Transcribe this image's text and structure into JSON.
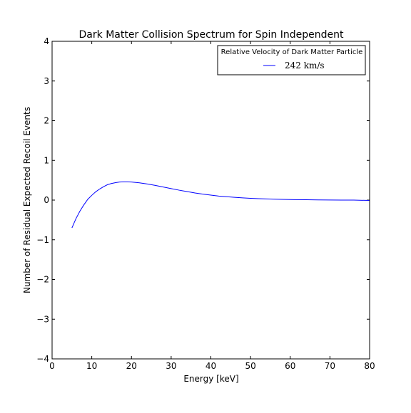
{
  "chart_data": {
    "type": "line",
    "title": "Dark Matter Collision Spectrum for Spin Independent",
    "xlabel": "Energy [keV]",
    "ylabel": "Number of Residual Expected Recoil Events",
    "xlim": [
      0,
      80
    ],
    "ylim": [
      -4,
      4
    ],
    "xticks": [
      0,
      10,
      20,
      30,
      40,
      50,
      60,
      70,
      80
    ],
    "yticks": [
      4,
      3,
      2,
      1,
      0,
      -1,
      -2,
      -3,
      -4
    ],
    "xtick_labels": [
      "0",
      "10",
      "20",
      "30",
      "40",
      "50",
      "60",
      "70",
      "80"
    ],
    "ytick_labels": [
      "4",
      "3",
      "2",
      "1",
      "0",
      "−1",
      "−2",
      "−3",
      "−4"
    ],
    "grid": false,
    "legend": {
      "title": "Relative Velocity of Dark Matter Particle",
      "placement": "top-right"
    },
    "series": [
      {
        "name": "242  km/s",
        "color": "#0000ff",
        "x": [
          5,
          6,
          7,
          8,
          9,
          10,
          11,
          12,
          13,
          14,
          15,
          16,
          17,
          18,
          19,
          20,
          22,
          24,
          26,
          28,
          30,
          32,
          34,
          36,
          38,
          40,
          42,
          44,
          46,
          48,
          50,
          52,
          55,
          58,
          61,
          64,
          67,
          70,
          73,
          76,
          80
        ],
        "y": [
          -0.7,
          -0.47,
          -0.28,
          -0.12,
          0.02,
          0.12,
          0.21,
          0.28,
          0.34,
          0.39,
          0.42,
          0.44,
          0.455,
          0.46,
          0.46,
          0.455,
          0.435,
          0.405,
          0.37,
          0.33,
          0.29,
          0.25,
          0.215,
          0.18,
          0.15,
          0.125,
          0.1,
          0.085,
          0.07,
          0.057,
          0.045,
          0.036,
          0.026,
          0.018,
          0.012,
          0.008,
          0.005,
          0.003,
          0.001,
          0.0,
          -0.01
        ]
      }
    ]
  }
}
